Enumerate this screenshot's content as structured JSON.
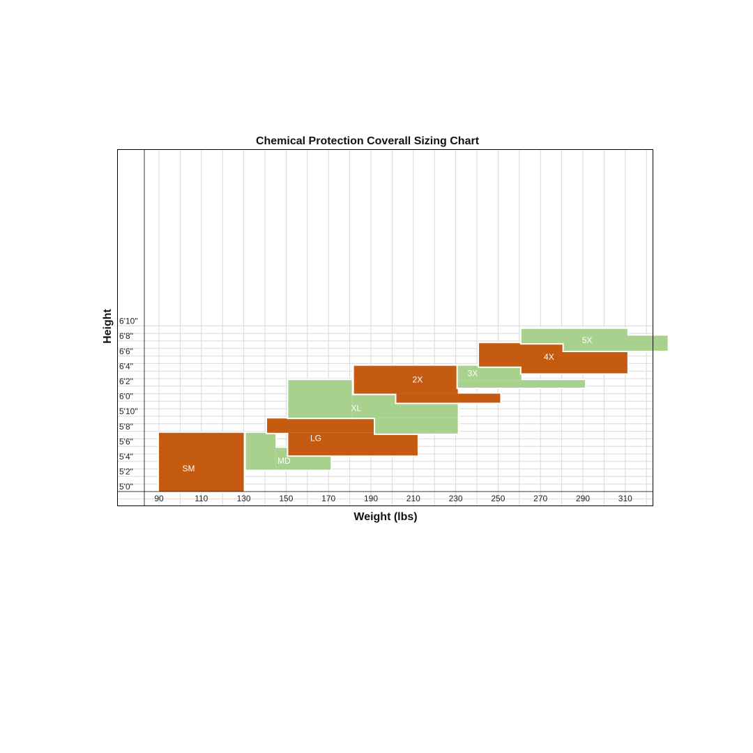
{
  "chart_data": {
    "type": "heatmap",
    "title": "Chemical Protection Coverall Sizing Chart",
    "xlabel": "Weight (lbs)",
    "ylabel": "Height",
    "xlim": [
      77,
      330
    ],
    "ylim": [
      58,
      82
    ],
    "grid": true,
    "x_ticks": [
      {
        "value": 90,
        "label": "90"
      },
      {
        "value": 110,
        "label": "110"
      },
      {
        "value": 130,
        "label": "130"
      },
      {
        "value": 150,
        "label": "150"
      },
      {
        "value": 170,
        "label": "170"
      },
      {
        "value": 190,
        "label": "190"
      },
      {
        "value": 210,
        "label": "210"
      },
      {
        "value": 230,
        "label": "230"
      },
      {
        "value": 250,
        "label": "250"
      },
      {
        "value": 270,
        "label": "270"
      },
      {
        "value": 290,
        "label": "290"
      },
      {
        "value": 310,
        "label": "310"
      }
    ],
    "y_ticks": [
      {
        "value": 60,
        "label": "5'0\""
      },
      {
        "value": 62,
        "label": "5'2\""
      },
      {
        "value": 64,
        "label": "5'4\""
      },
      {
        "value": 66,
        "label": "5'6\""
      },
      {
        "value": 68,
        "label": "5'8\""
      },
      {
        "value": 70,
        "label": "5'10\""
      },
      {
        "value": 72,
        "label": "6'0\""
      },
      {
        "value": 74,
        "label": "6'2\""
      },
      {
        "value": 76,
        "label": "6'4\""
      },
      {
        "value": 78,
        "label": "6'6\""
      },
      {
        "value": 80,
        "label": "6'8\""
      },
      {
        "value": 82,
        "label": "6'10\""
      }
    ],
    "colors": {
      "orange": "#C55A11",
      "green": "#A9D18E",
      "grid": "#D9D9D9"
    },
    "sizes": [
      {
        "label": "SM",
        "color": "orange",
        "label_at": [
          104,
          63
        ],
        "regions": [
          {
            "x": [
              90,
              130
            ],
            "y": [
              60,
              67.8
            ]
          }
        ]
      },
      {
        "label": "MD",
        "color": "green",
        "label_at": [
          149,
          64
        ],
        "regions": [
          {
            "x": [
              131,
              145
            ],
            "y": [
              62.9,
              67.8
            ]
          },
          {
            "x": [
              145,
              171
            ],
            "y": [
              62.9,
              65.8
            ]
          }
        ]
      },
      {
        "label": "LG",
        "color": "orange",
        "label_at": [
          164,
          67
        ],
        "regions": [
          {
            "x": [
              141,
              192
            ],
            "y": [
              67.8,
              69.7
            ]
          },
          {
            "x": [
              151,
              212
            ],
            "y": [
              64.8,
              67.8
            ]
          },
          {
            "x": [
              171,
              212
            ],
            "y": [
              64.8,
              65.8
            ]
          }
        ]
      },
      {
        "label": "XL",
        "color": "green",
        "label_at": [
          183,
          71
        ],
        "regions": [
          {
            "x": [
              151,
              181
            ],
            "y": [
              69.8,
              74.8
            ]
          },
          {
            "x": [
              181,
              231
            ],
            "y": [
              69.8,
              72.8
            ]
          },
          {
            "x": [
              192,
              231
            ],
            "y": [
              67.7,
              69.8
            ]
          }
        ]
      },
      {
        "label": "2X",
        "color": "orange",
        "label_at": [
          212,
          74.8
        ],
        "regions": [
          {
            "x": [
              182,
              231
            ],
            "y": [
              73,
              76.7
            ]
          },
          {
            "x": [
              202,
              251
            ],
            "y": [
              71.8,
              73
            ]
          }
        ]
      },
      {
        "label": "3X",
        "color": "green",
        "label_at": [
          238,
          75.6
        ],
        "regions": [
          {
            "x": [
              231,
              261
            ],
            "y": [
              74.8,
              76.7
            ]
          },
          {
            "x": [
              231,
              291
            ],
            "y": [
              73.8,
              74.8
            ]
          }
        ]
      },
      {
        "label": "4X",
        "color": "orange",
        "label_at": [
          274,
          77.8
        ],
        "regions": [
          {
            "x": [
              241,
              281
            ],
            "y": [
              76.6,
              79.7
            ]
          },
          {
            "x": [
              261,
              311
            ],
            "y": [
              75.7,
              78.7
            ]
          }
        ]
      },
      {
        "label": "5X",
        "color": "green",
        "label_at": [
          292,
          80
        ],
        "regions": [
          {
            "x": [
              261,
              311
            ],
            "y": [
              79.7,
              81.6
            ]
          },
          {
            "x": [
              281,
              330
            ],
            "y": [
              78.7,
              80.7
            ]
          }
        ]
      }
    ]
  }
}
